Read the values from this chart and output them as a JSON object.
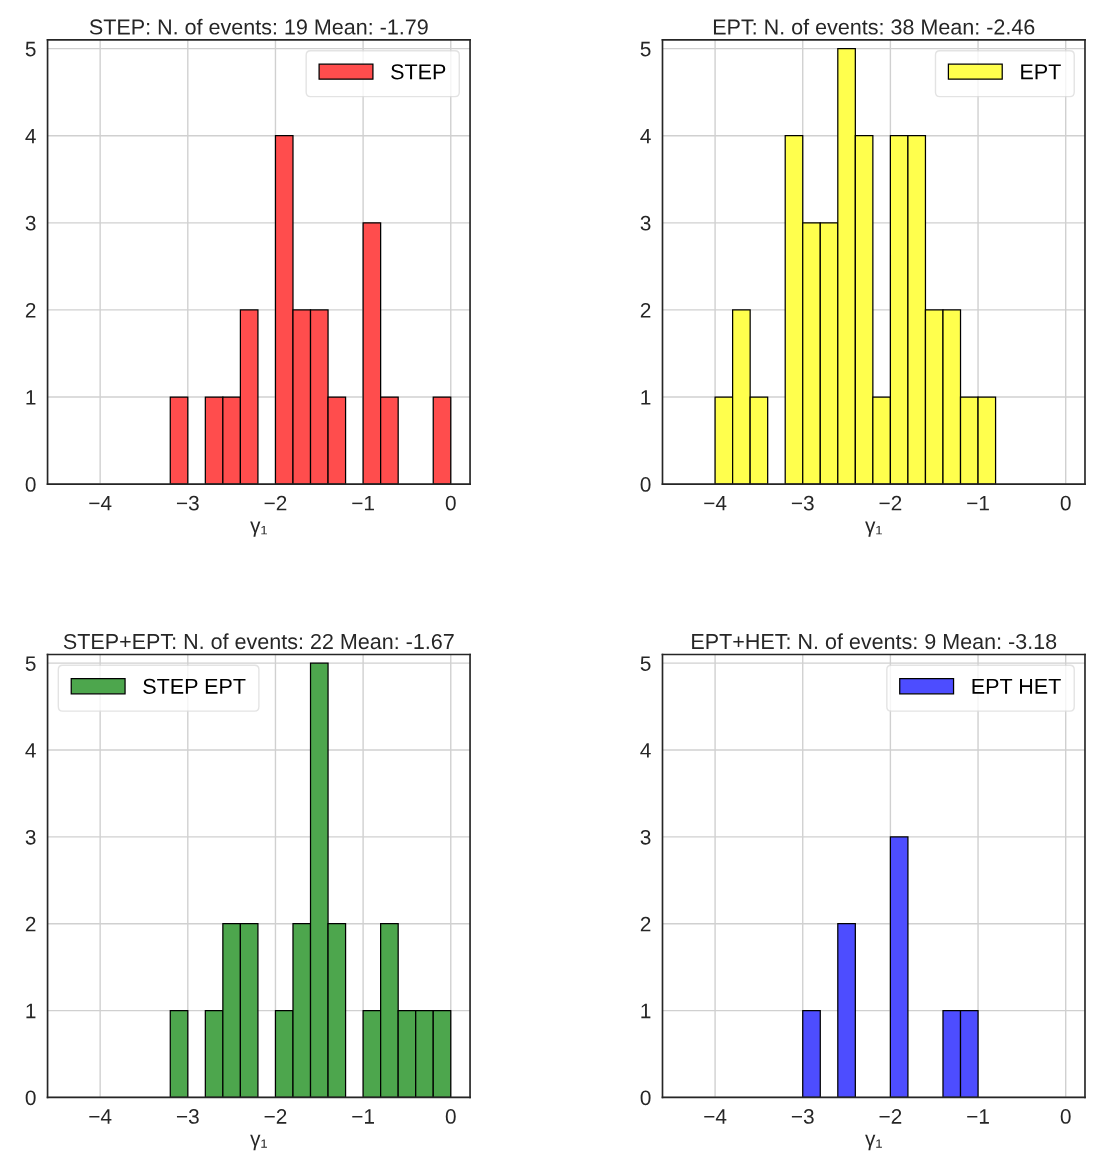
{
  "chart_data": [
    {
      "type": "histogram",
      "title": "STEP: N. of events: 19 Mean: -1.79",
      "xlabel": "γ₁",
      "bins": [
        -3.2,
        -3.0,
        -2.8,
        -2.6,
        -2.4,
        -2.2,
        -2.0,
        -1.8,
        -1.6,
        -1.4,
        -1.2,
        -1.0,
        -0.8,
        -0.6,
        -0.4,
        -0.2,
        0.0
      ],
      "series": [
        {
          "name": "STEP",
          "color": "#ff4d4d",
          "values": [
            1,
            0,
            1,
            1,
            2,
            0,
            4,
            2,
            2,
            1,
            0,
            3,
            1,
            0,
            0,
            1
          ]
        }
      ],
      "xlim": [
        -4.6,
        0.22
      ],
      "ylim": [
        0,
        5.1
      ],
      "xticks": [
        -4,
        -3,
        -2,
        -1,
        0
      ],
      "yticks": [
        0,
        1,
        2,
        3,
        4,
        5
      ],
      "grid": true,
      "legend": "top right"
    },
    {
      "type": "histogram",
      "title": "EPT: N. of events: 38 Mean: -2.46",
      "xlabel": "γ₁",
      "bins": [
        -4.0,
        -3.8,
        -3.6,
        -3.4,
        -3.2,
        -3.0,
        -2.8,
        -2.6,
        -2.4,
        -2.2,
        -2.0,
        -1.8,
        -1.6,
        -1.4,
        -1.2,
        -1.0,
        -0.8
      ],
      "series": [
        {
          "name": "EPT",
          "color": "#ffff4d",
          "values": [
            1,
            2,
            1,
            0,
            4,
            3,
            3,
            5,
            4,
            1,
            4,
            4,
            2,
            2,
            1,
            1
          ]
        }
      ],
      "xlim": [
        -4.6,
        0.22
      ],
      "ylim": [
        0,
        5.1
      ],
      "xticks": [
        -4,
        -3,
        -2,
        -1,
        0
      ],
      "yticks": [
        0,
        1,
        2,
        3,
        4,
        5
      ],
      "grid": true,
      "legend": "top right"
    },
    {
      "type": "histogram",
      "title": "STEP+EPT: N. of events: 22 Mean: -1.67",
      "xlabel": "γ₁",
      "bins": [
        -3.2,
        -3.0,
        -2.8,
        -2.6,
        -2.4,
        -2.2,
        -2.0,
        -1.8,
        -1.6,
        -1.4,
        -1.2,
        -1.0,
        -0.8,
        -0.6,
        -0.4,
        -0.2,
        0.0
      ],
      "series": [
        {
          "name": "STEP EPT",
          "color": "#4da64d",
          "values": [
            1,
            0,
            1,
            2,
            2,
            0,
            1,
            2,
            5,
            2,
            0,
            1,
            2,
            1,
            1,
            1
          ]
        }
      ],
      "xlim": [
        -4.6,
        0.22
      ],
      "ylim": [
        0,
        5.1
      ],
      "xticks": [
        -4,
        -3,
        -2,
        -1,
        0
      ],
      "yticks": [
        0,
        1,
        2,
        3,
        4,
        5
      ],
      "grid": true,
      "legend": "top left"
    },
    {
      "type": "histogram",
      "title": "EPT+HET: N. of events: 9 Mean: -3.18",
      "xlabel": "γ₁",
      "bins": [
        -3.0,
        -2.8,
        -2.6,
        -2.4,
        -2.2,
        -2.0,
        -1.8,
        -1.6,
        -1.4,
        -1.2,
        -1.0
      ],
      "series": [
        {
          "name": "EPT HET",
          "color": "#4d4dff",
          "values": [
            1,
            0,
            2,
            0,
            0,
            3,
            0,
            0,
            1,
            1
          ]
        }
      ],
      "xlim": [
        -4.6,
        0.22
      ],
      "ylim": [
        0,
        5.1
      ],
      "xticks": [
        -4,
        -3,
        -2,
        -1,
        0
      ],
      "yticks": [
        0,
        1,
        2,
        3,
        4,
        5
      ],
      "grid": true,
      "legend": "top right"
    }
  ]
}
